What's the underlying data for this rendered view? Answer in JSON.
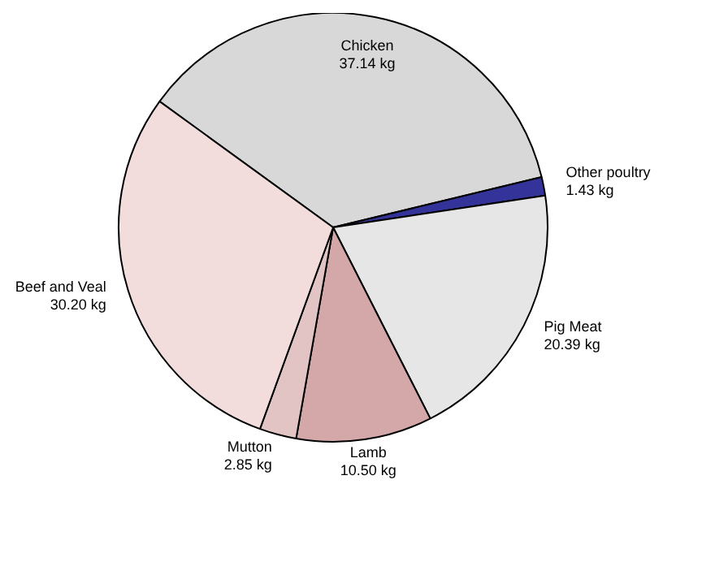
{
  "chart_data": {
    "type": "pie",
    "categories": [
      "Chicken",
      "Other poultry",
      "Pig Meat",
      "Lamb",
      "Mutton",
      "Beef and Veal"
    ],
    "values": [
      37.14,
      1.43,
      20.39,
      10.5,
      2.85,
      30.2
    ],
    "value_labels": [
      "37.14 kg",
      "1.43 kg",
      "20.39 kg",
      "10.50 kg",
      "2.85 kg",
      "30.20 kg"
    ],
    "colors": [
      "#d8d8d8",
      "#333399",
      "#e6e6e6",
      "#d4a8a8",
      "#e2c4c4",
      "#f2dcdc"
    ],
    "legend": false
  }
}
